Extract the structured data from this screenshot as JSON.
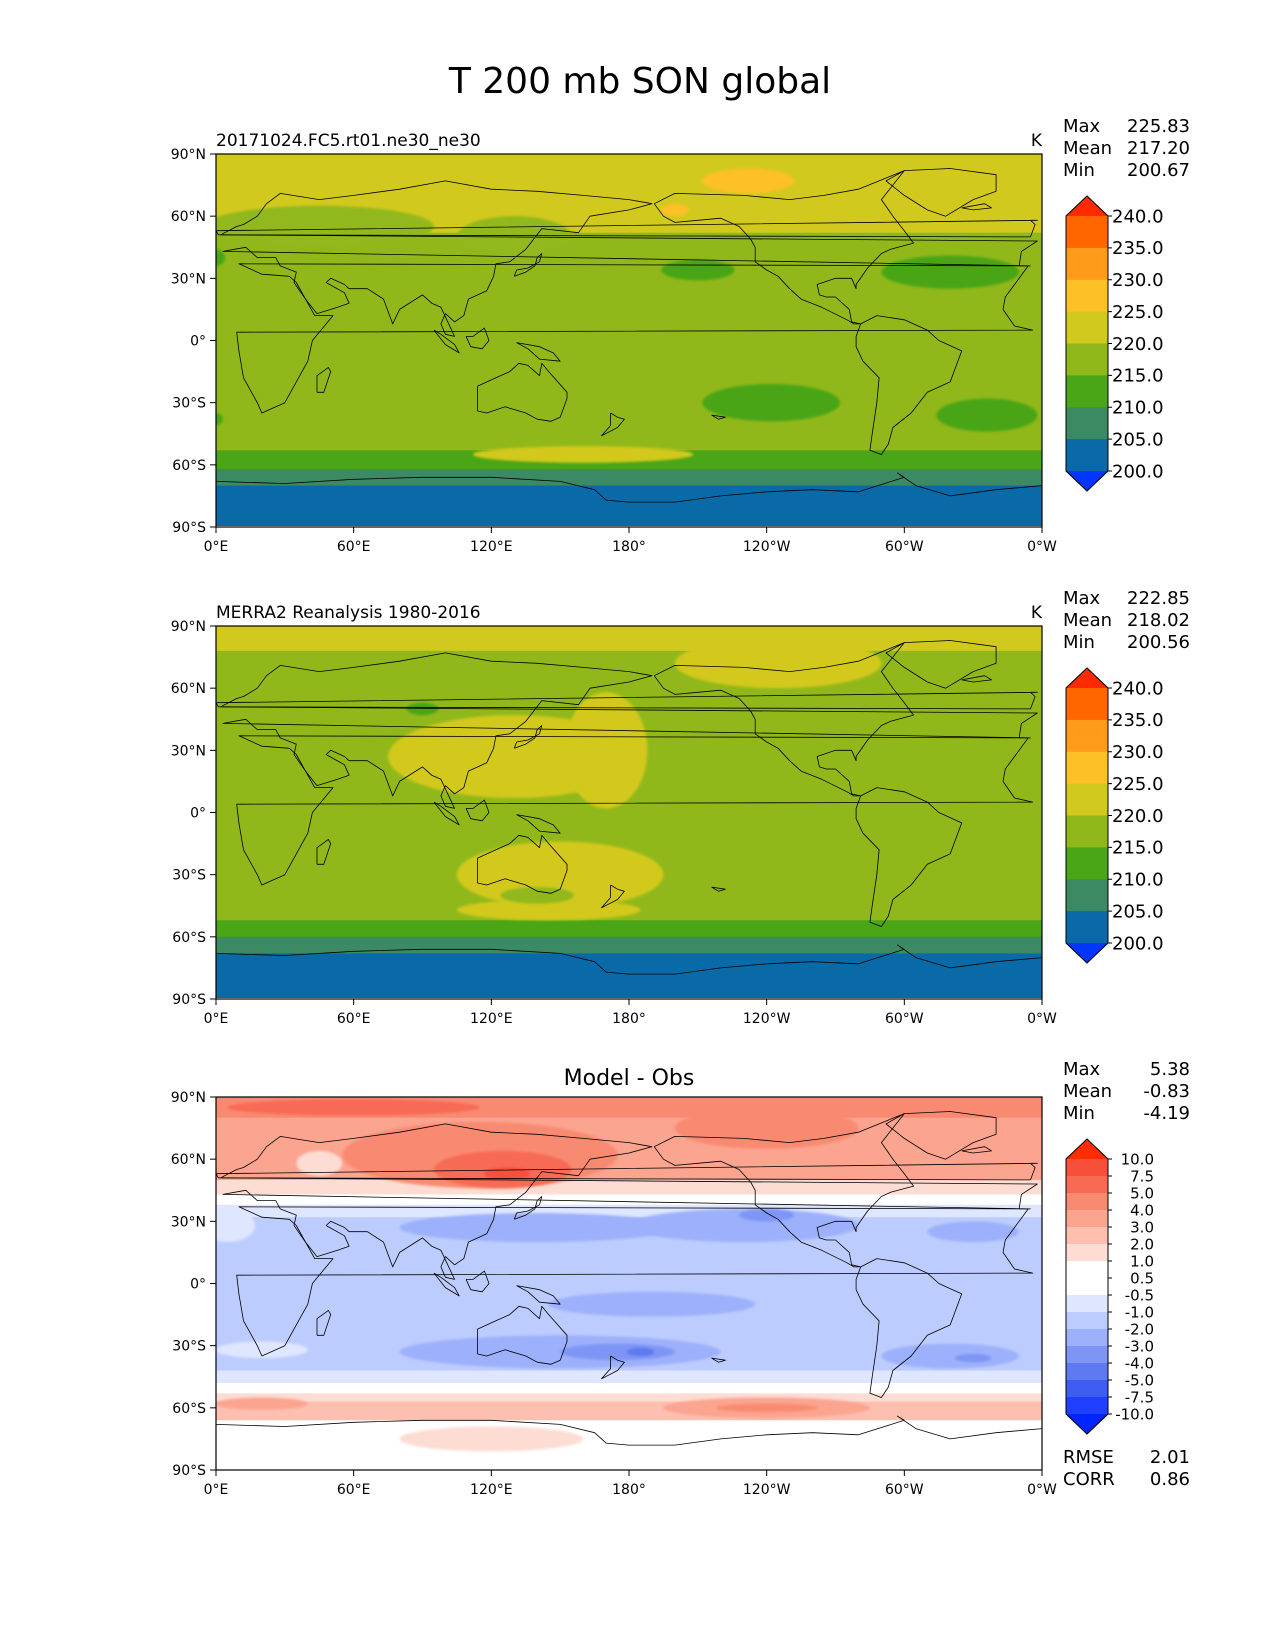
{
  "figure_title": "T 200 mb SON global",
  "chart_data": [
    {
      "type": "heatmap",
      "title": "20171024.FC5.rt01.ne30_ne30",
      "units": "K",
      "stats": [
        {
          "label": "Max",
          "value": "225.83"
        },
        {
          "label": "Mean",
          "value": "217.20"
        },
        {
          "label": "Min",
          "value": "200.67"
        }
      ],
      "xticks": [
        "0°E",
        "60°E",
        "120°E",
        "180°",
        "120°W",
        "60°W",
        "0°W"
      ],
      "yticks": [
        "90°N",
        "60°N",
        "30°N",
        "0°",
        "30°S",
        "60°S",
        "90°S"
      ],
      "colorbar": {
        "levels": [
          "240.0",
          "235.0",
          "230.0",
          "225.0",
          "220.0",
          "215.0",
          "210.0",
          "205.0",
          "200.0"
        ],
        "colors": [
          "#ff2a00",
          "#ff6600",
          "#ff9a1a",
          "#fdc027",
          "#d2c91f",
          "#91b81a",
          "#4aa517",
          "#3b8a63",
          "#0a6aa8",
          "#0036ff"
        ]
      },
      "regions": [
        {
          "lat": [
            90,
            73
          ],
          "lon": [
            0,
            360
          ],
          "color": "#d2c91f"
        },
        {
          "lat": [
            73,
            52
          ],
          "lon": [
            0,
            360
          ],
          "color": "#d2c91f"
        },
        {
          "lat": [
            52,
            -53
          ],
          "lon": [
            0,
            360
          ],
          "color": "#91b81a"
        },
        {
          "lat": [
            -53,
            -62
          ],
          "lon": [
            0,
            360
          ],
          "color": "#4aa517"
        },
        {
          "lat": [
            -62,
            -70
          ],
          "lon": [
            0,
            360
          ],
          "color": "#3b8a63"
        },
        {
          "lat": [
            -70,
            -90
          ],
          "lon": [
            0,
            360
          ],
          "color": "#0a6aa8"
        }
      ],
      "blobs": [
        {
          "lon": 232,
          "lat": 77,
          "rlon": 20,
          "rlat": 6,
          "color": "#fdc027"
        },
        {
          "lon": 200,
          "lat": 63,
          "rlon": 6,
          "rlat": 3,
          "color": "#fdc027"
        },
        {
          "lon": 45,
          "lat": 55,
          "rlon": 50,
          "rlat": 10,
          "color": "#91b81a"
        },
        {
          "lon": 130,
          "lat": 50,
          "rlon": 25,
          "rlat": 10,
          "color": "#91b81a"
        },
        {
          "lon": 210,
          "lat": 34,
          "rlon": 16,
          "rlat": 5,
          "color": "#4aa517"
        },
        {
          "lon": 320,
          "lat": 33,
          "rlon": 30,
          "rlat": 8,
          "color": "#4aa517"
        },
        {
          "lon": 0,
          "lat": 40,
          "rlon": 4,
          "rlat": 4,
          "color": "#4aa517"
        },
        {
          "lon": 242,
          "lat": -30,
          "rlon": 30,
          "rlat": 9,
          "color": "#4aa517"
        },
        {
          "lon": 336,
          "lat": -36,
          "rlon": 22,
          "rlat": 8,
          "color": "#4aa517"
        },
        {
          "lon": 0,
          "lat": -38,
          "rlon": 3,
          "rlat": 3,
          "color": "#4aa517"
        },
        {
          "lon": 160,
          "lat": -55,
          "rlon": 48,
          "rlat": 4,
          "color": "#d2c91f"
        }
      ]
    },
    {
      "type": "heatmap",
      "title": "MERRA2 Reanalysis 1980-2016",
      "units": "K",
      "stats": [
        {
          "label": "Max",
          "value": "222.85"
        },
        {
          "label": "Mean",
          "value": "218.02"
        },
        {
          "label": "Min",
          "value": "200.56"
        }
      ],
      "xticks": [
        "0°E",
        "60°E",
        "120°E",
        "180°",
        "120°W",
        "60°W",
        "0°W"
      ],
      "yticks": [
        "90°N",
        "60°N",
        "30°N",
        "0°",
        "30°S",
        "60°S",
        "90°S"
      ],
      "colorbar": {
        "levels": [
          "240.0",
          "235.0",
          "230.0",
          "225.0",
          "220.0",
          "215.0",
          "210.0",
          "205.0",
          "200.0"
        ],
        "colors": [
          "#ff2a00",
          "#ff6600",
          "#ff9a1a",
          "#fdc027",
          "#d2c91f",
          "#91b81a",
          "#4aa517",
          "#3b8a63",
          "#0a6aa8",
          "#0036ff"
        ]
      },
      "regions": [
        {
          "lat": [
            90,
            78
          ],
          "lon": [
            0,
            360
          ],
          "color": "#d2c91f"
        },
        {
          "lat": [
            78,
            -52
          ],
          "lon": [
            0,
            360
          ],
          "color": "#91b81a"
        },
        {
          "lat": [
            -52,
            -60
          ],
          "lon": [
            0,
            360
          ],
          "color": "#4aa517"
        },
        {
          "lat": [
            -60,
            -68
          ],
          "lon": [
            0,
            360
          ],
          "color": "#3b8a63"
        },
        {
          "lat": [
            -68,
            -90
          ],
          "lon": [
            0,
            360
          ],
          "color": "#0a6aa8"
        }
      ],
      "blobs": [
        {
          "lon": 245,
          "lat": 72,
          "rlon": 45,
          "rlat": 12,
          "color": "#d2c91f"
        },
        {
          "lon": 130,
          "lat": 27,
          "rlon": 55,
          "rlat": 20,
          "color": "#d2c91f"
        },
        {
          "lon": 170,
          "lat": 30,
          "rlon": 18,
          "rlat": 28,
          "color": "#d2c91f"
        },
        {
          "lon": 150,
          "lat": -30,
          "rlon": 45,
          "rlat": 16,
          "color": "#d2c91f"
        },
        {
          "lon": 145,
          "lat": -47,
          "rlon": 40,
          "rlat": 5,
          "color": "#d2c91f"
        },
        {
          "lon": 90,
          "lat": 50,
          "rlon": 7,
          "rlat": 3,
          "color": "#4aa517"
        },
        {
          "lon": 140,
          "lat": -40,
          "rlon": 16,
          "rlat": 4,
          "color": "#91b81a"
        }
      ]
    },
    {
      "type": "heatmap",
      "title": "Model - Obs",
      "units": "",
      "stats": [
        {
          "label": "Max",
          "value": "5.38"
        },
        {
          "label": "Mean",
          "value": "-0.83"
        },
        {
          "label": "Min",
          "value": "-4.19"
        }
      ],
      "xticks": [
        "0°E",
        "60°E",
        "120°E",
        "180°",
        "120°W",
        "60°W",
        "0°W"
      ],
      "yticks": [
        "90°N",
        "60°N",
        "30°N",
        "0°",
        "30°S",
        "60°S",
        "90°S"
      ],
      "colorbar": {
        "levels": [
          "10.0",
          "7.5",
          "5.0",
          "4.0",
          "3.0",
          "2.0",
          "1.0",
          "0.5",
          "-0.5",
          "-1.0",
          "-2.0",
          "-3.0",
          "-4.0",
          "-5.0",
          "-7.5",
          "-10.0"
        ],
        "colors": [
          "#ff2d00",
          "#f7503a",
          "#f76b55",
          "#f98a72",
          "#fba48f",
          "#fdc0b0",
          "#fddcd3",
          "#ffffff",
          "#ffffff",
          "#dfe6ff",
          "#bdccff",
          "#9db0fb",
          "#7e95f5",
          "#5f79f0",
          "#3f5cf0",
          "#1f40ff",
          "#0025ff"
        ]
      },
      "stats_bottom": [
        {
          "label": "RMSE",
          "value": "2.01"
        },
        {
          "label": "CORR",
          "value": "0.86"
        }
      ],
      "regions": [
        {
          "lat": [
            90,
            80
          ],
          "lon": [
            0,
            360
          ],
          "color": "#f98a72"
        },
        {
          "lat": [
            80,
            50
          ],
          "lon": [
            0,
            360
          ],
          "color": "#fba48f"
        },
        {
          "lat": [
            50,
            43
          ],
          "lon": [
            0,
            360
          ],
          "color": "#fddcd3"
        },
        {
          "lat": [
            43,
            38
          ],
          "lon": [
            0,
            360
          ],
          "color": "#ffffff"
        },
        {
          "lat": [
            38,
            32
          ],
          "lon": [
            0,
            360
          ],
          "color": "#dfe6ff"
        },
        {
          "lat": [
            32,
            -42
          ],
          "lon": [
            0,
            360
          ],
          "color": "#bdccff"
        },
        {
          "lat": [
            -42,
            -48
          ],
          "lon": [
            0,
            360
          ],
          "color": "#dfe6ff"
        },
        {
          "lat": [
            -48,
            -53
          ],
          "lon": [
            0,
            360
          ],
          "color": "#ffffff"
        },
        {
          "lat": [
            -53,
            -57
          ],
          "lon": [
            0,
            360
          ],
          "color": "#fddcd3"
        },
        {
          "lat": [
            -57,
            -66
          ],
          "lon": [
            0,
            360
          ],
          "color": "#fdc0b0"
        },
        {
          "lat": [
            -66,
            -90
          ],
          "lon": [
            0,
            360
          ],
          "color": "#ffffff"
        }
      ],
      "blobs": [
        {
          "lon": 60,
          "lat": 85,
          "rlon": 55,
          "rlat": 4,
          "color": "#f76b55"
        },
        {
          "lon": 115,
          "lat": 62,
          "rlon": 60,
          "rlat": 16,
          "color": "#f98a72"
        },
        {
          "lon": 125,
          "lat": 55,
          "rlon": 30,
          "rlat": 9,
          "color": "#f76b55"
        },
        {
          "lon": 127,
          "lat": 53,
          "rlon": 10,
          "rlat": 3,
          "color": "#f7503a"
        },
        {
          "lon": 45,
          "lat": 58,
          "rlon": 10,
          "rlat": 6,
          "color": "#fddcd3"
        },
        {
          "lon": 240,
          "lat": 75,
          "rlon": 40,
          "rlat": 10,
          "color": "#f98a72"
        },
        {
          "lon": 5,
          "lat": 28,
          "rlon": 12,
          "rlat": 8,
          "color": "#dfe6ff"
        },
        {
          "lon": 140,
          "lat": 27,
          "rlon": 60,
          "rlat": 7,
          "color": "#9db0fb"
        },
        {
          "lon": 230,
          "lat": 28,
          "rlon": 50,
          "rlat": 8,
          "color": "#9db0fb"
        },
        {
          "lon": 240,
          "lat": 33,
          "rlon": 12,
          "rlat": 3,
          "color": "#7e95f5"
        },
        {
          "lon": 330,
          "lat": 25,
          "rlon": 20,
          "rlat": 5,
          "color": "#9db0fb"
        },
        {
          "lon": 190,
          "lat": -10,
          "rlon": 45,
          "rlat": 6,
          "color": "#9db0fb"
        },
        {
          "lon": 150,
          "lat": -33,
          "rlon": 70,
          "rlat": 8,
          "color": "#9db0fb"
        },
        {
          "lon": 175,
          "lat": -33,
          "rlon": 25,
          "rlat": 4,
          "color": "#7e95f5"
        },
        {
          "lon": 185,
          "lat": -33,
          "rlon": 6,
          "rlat": 2,
          "color": "#5f79f0"
        },
        {
          "lon": 320,
          "lat": -35,
          "rlon": 30,
          "rlat": 6,
          "color": "#9db0fb"
        },
        {
          "lon": 330,
          "lat": -36,
          "rlon": 8,
          "rlat": 2,
          "color": "#7e95f5"
        },
        {
          "lon": 20,
          "lat": -32,
          "rlon": 20,
          "rlat": 4,
          "color": "#dfe6ff"
        },
        {
          "lon": 20,
          "lat": -58,
          "rlon": 20,
          "rlat": 3,
          "color": "#fba48f"
        },
        {
          "lon": 240,
          "lat": -60,
          "rlon": 45,
          "rlat": 5,
          "color": "#fba48f"
        },
        {
          "lon": 240,
          "lat": -60,
          "rlon": 22,
          "rlat": 2,
          "color": "#f98a72"
        },
        {
          "lon": 120,
          "lat": -75,
          "rlon": 40,
          "rlat": 6,
          "color": "#fddcd3"
        }
      ]
    }
  ]
}
